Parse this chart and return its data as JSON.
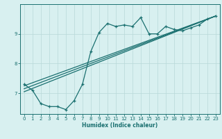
{
  "title": "",
  "xlabel": "Humidex (Indice chaleur)",
  "bg_color": "#d8f0f0",
  "line_color": "#1a7070",
  "grid_color": "#b8d8d8",
  "xlim": [
    -0.5,
    23.5
  ],
  "ylim": [
    6.3,
    10.0
  ],
  "yticks": [
    7,
    8,
    9
  ],
  "xticks": [
    0,
    1,
    2,
    3,
    4,
    5,
    6,
    7,
    8,
    9,
    10,
    11,
    12,
    13,
    14,
    15,
    16,
    17,
    18,
    19,
    20,
    21,
    22,
    23
  ],
  "series1": [
    [
      0,
      7.3
    ],
    [
      1,
      7.1
    ],
    [
      2,
      6.65
    ],
    [
      3,
      6.55
    ],
    [
      4,
      6.55
    ],
    [
      5,
      6.45
    ],
    [
      6,
      6.75
    ],
    [
      7,
      7.3
    ],
    [
      8,
      8.4
    ],
    [
      9,
      9.05
    ],
    [
      10,
      9.35
    ],
    [
      11,
      9.25
    ],
    [
      12,
      9.3
    ],
    [
      13,
      9.25
    ],
    [
      14,
      9.55
    ],
    [
      15,
      9.0
    ],
    [
      16,
      9.0
    ],
    [
      17,
      9.25
    ],
    [
      18,
      9.15
    ],
    [
      19,
      9.1
    ],
    [
      20,
      9.2
    ],
    [
      21,
      9.3
    ],
    [
      22,
      9.5
    ],
    [
      23,
      9.6
    ]
  ],
  "linear_lines": [
    [
      [
        0,
        7.05
      ],
      [
        23,
        9.6
      ]
    ],
    [
      [
        0,
        7.15
      ],
      [
        23,
        9.6
      ]
    ],
    [
      [
        0,
        7.25
      ],
      [
        23,
        9.6
      ]
    ]
  ]
}
